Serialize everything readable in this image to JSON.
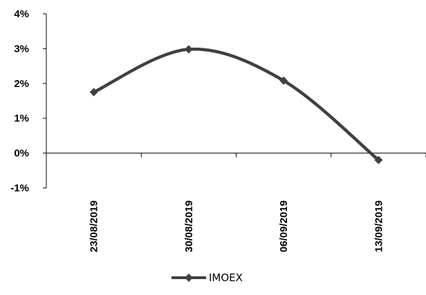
{
  "chart_data": {
    "type": "line",
    "categories": [
      "23/08/2019",
      "30/08/2019",
      "06/09/2019",
      "13/09/2019"
    ],
    "series": [
      {
        "name": "IMOEX",
        "values": [
          1.75,
          2.98,
          2.08,
          -0.2
        ],
        "color": "#404040"
      }
    ],
    "yticks": [
      "4%",
      "3%",
      "2%",
      "1%",
      "0%",
      "-1%"
    ],
    "ylim": [
      -1,
      4
    ],
    "legend_position": "bottom",
    "grid": false,
    "smooth": true
  }
}
